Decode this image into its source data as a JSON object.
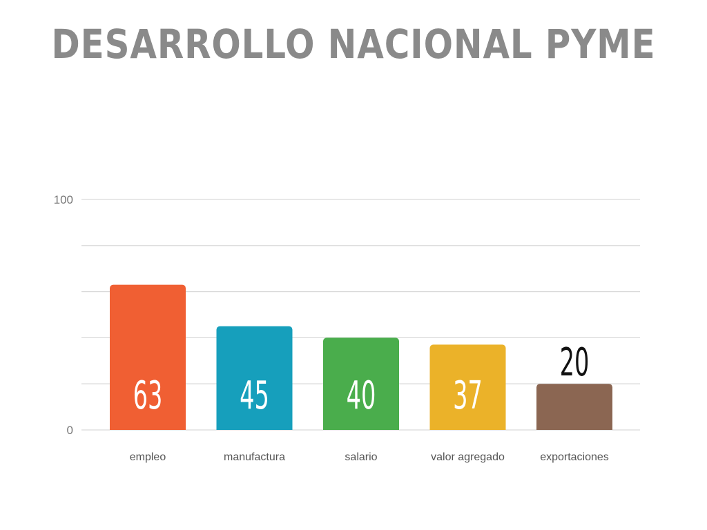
{
  "title": "DESARROLLO NACIONAL PYME",
  "colors": {
    "title": "#8a8a8a",
    "grid": "#d9d9d9",
    "bars": [
      "#f05f33",
      "#169fbc",
      "#4aad4c",
      "#ebb229",
      "#8b6652"
    ],
    "inside_label": "#ffffff",
    "outside_label": "#111111"
  },
  "chart_data": {
    "type": "bar",
    "categories": [
      "empleo",
      "manufactura",
      "salario",
      "valor agregado",
      "exportaciones"
    ],
    "values": [
      63,
      45,
      40,
      37,
      20
    ],
    "data_labels": [
      "63",
      "45",
      "40",
      "37",
      "20"
    ],
    "ylim": [
      0,
      100
    ],
    "y_tick_labels": [
      "100",
      "0"
    ],
    "y_ticks": [
      100,
      0
    ],
    "gridlines": [
      0,
      20,
      40,
      60,
      80,
      100
    ],
    "grid": true,
    "title": "",
    "xlabel": "",
    "ylabel": ""
  }
}
